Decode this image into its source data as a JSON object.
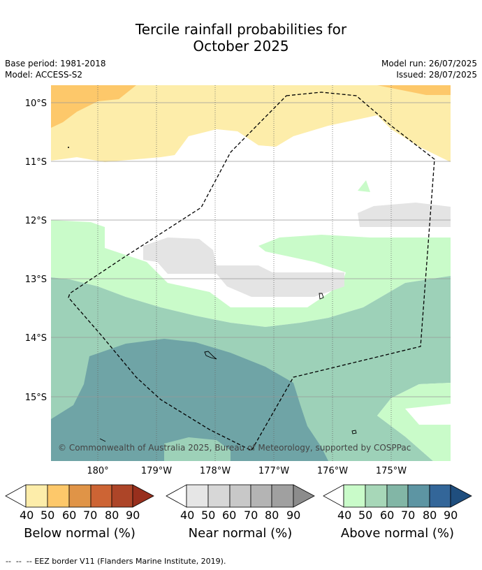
{
  "title": {
    "line1": "Tercile rainfall probabilities for",
    "line2": "October 2025"
  },
  "meta": {
    "base_period": "Base period: 1981-2018",
    "model": "Model: ACCESS-S2",
    "model_run": "Model run: 26/07/2025",
    "issued": "Issued: 28/07/2025"
  },
  "map": {
    "lat_labels": [
      "10°S",
      "11°S",
      "12°S",
      "13°S",
      "14°S",
      "15°S"
    ],
    "lon_labels": [
      "180°",
      "179°W",
      "178°W",
      "177°W",
      "176°W",
      "175°W"
    ],
    "copyright": "© Commonwealth of Australia 2025, Bureau of Meteorology, supported by COSPPac",
    "legend_line": "EEZ border V11 (Flanders Marine Institute, 2019)."
  },
  "colorbars": [
    {
      "title": "Below normal (%)",
      "ticks": [
        "40",
        "50",
        "60",
        "70",
        "80",
        "90"
      ],
      "colors": [
        "#fdedaa",
        "#fdc86a",
        "#e09447",
        "#cd6434",
        "#ad4528",
        "#982f1d"
      ]
    },
    {
      "title": "Near normal (%)",
      "ticks": [
        "40",
        "50",
        "60",
        "70",
        "80",
        "90"
      ],
      "colors": [
        "#e6e6e6",
        "#d7d7d7",
        "#c8c8c8",
        "#b4b4b4",
        "#a0a0a0",
        "#8c8c8c"
      ]
    },
    {
      "title": "Above normal (%)",
      "ticks": [
        "40",
        "50",
        "60",
        "70",
        "80",
        "90"
      ],
      "colors": [
        "#c9fbc9",
        "#a7d7b8",
        "#82b6a6",
        "#5d95a3",
        "#336699",
        "#1f4e7e"
      ]
    }
  ],
  "colors": {
    "below_40": "#fdedaa",
    "below_50": "#fdc86a",
    "near_40": "#e4e4e4",
    "above_40": "#c9fbc9",
    "above_50": "#9dd1b8",
    "above_60": "#6fa4a6"
  }
}
